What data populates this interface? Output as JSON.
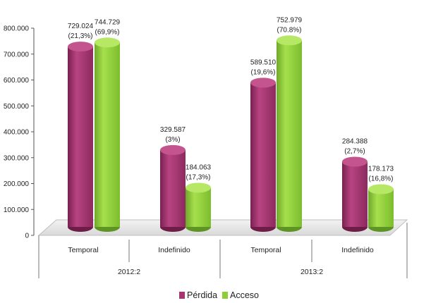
{
  "chart_data": {
    "type": "bar",
    "ylim": [
      0,
      800000
    ],
    "ytick_labels": [
      "0",
      "100.000",
      "200.000",
      "300.000",
      "400.000",
      "500.000",
      "600.000",
      "700.000",
      "800.000"
    ],
    "groups": [
      {
        "label": "2012:2",
        "categories": [
          "Temporal",
          "Indefinido"
        ]
      },
      {
        "label": "2013:2",
        "categories": [
          "Temporal",
          "Indefinido"
        ]
      }
    ],
    "categories": [
      "Temporal",
      "Indefinido",
      "Temporal",
      "Indefinido"
    ],
    "series": [
      {
        "name": "Pérdida",
        "color": "#a8356e",
        "values": [
          729024,
          329587,
          589510,
          284388
        ],
        "value_labels": [
          "729.024",
          "329.587",
          "589.510",
          "284.388"
        ],
        "pct_labels": [
          "(21,3%)",
          "(3%)",
          "(19,6%)",
          "(2,7%)"
        ]
      },
      {
        "name": "Acceso",
        "color": "#8ccf34",
        "values": [
          744729,
          184063,
          752979,
          178173
        ],
        "value_labels": [
          "744.729",
          "184.063",
          "752.979",
          "178.173"
        ],
        "pct_labels": [
          "(69,9%)",
          "(17,3%)",
          "(70.8%)",
          "(16,8%)"
        ]
      }
    ],
    "legend_position": "bottom",
    "grid": false
  }
}
